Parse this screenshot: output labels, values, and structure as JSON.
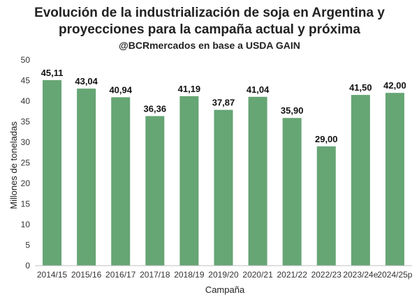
{
  "chart_data": {
    "type": "bar",
    "title": "Evolución de la industrialización de soja en Argentina y",
    "title_line2": "proyecciones para la campaña actual y próxima",
    "subtitle": "@BCRmercados en base a USDA GAIN",
    "xlabel": "Campaña",
    "ylabel": "Millones de toneladas",
    "ylim": [
      0,
      50
    ],
    "yticks": [
      0,
      5,
      10,
      15,
      20,
      25,
      30,
      35,
      40,
      45,
      50
    ],
    "grid": false,
    "bar_color": "#66a574",
    "categories": [
      "2014/15",
      "2015/16",
      "2016/17",
      "2017/18",
      "2018/19",
      "2019/20",
      "2020/21",
      "2021/22",
      "2022/23",
      "2023/24e",
      "2024/25p"
    ],
    "values": [
      45.11,
      43.04,
      40.94,
      36.36,
      41.19,
      37.87,
      41.04,
      35.9,
      29.0,
      41.5,
      42.0
    ],
    "value_labels": [
      "45,11",
      "43,04",
      "40,94",
      "36,36",
      "41,19",
      "37,87",
      "41,04",
      "35,90",
      "29,00",
      "41,50",
      "42,00"
    ]
  }
}
